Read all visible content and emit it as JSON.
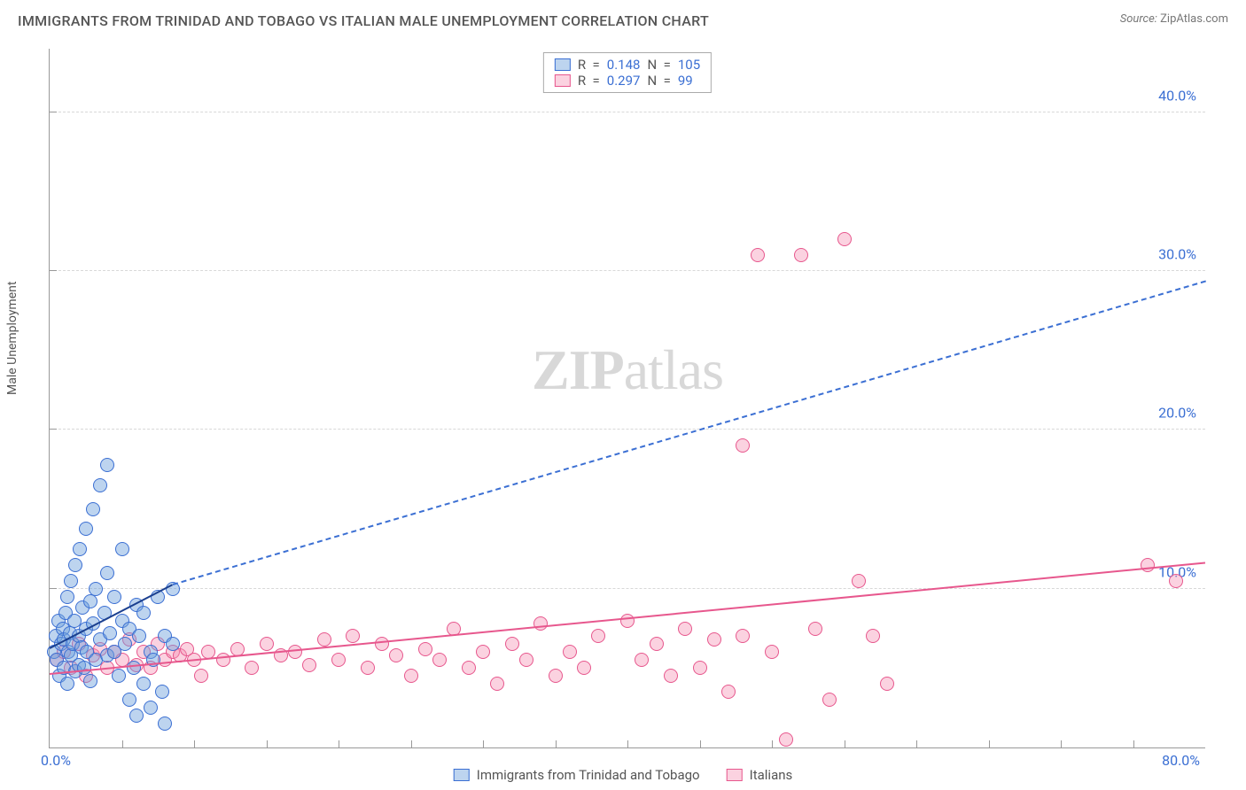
{
  "title": "IMMIGRANTS FROM TRINIDAD AND TOBAGO VS ITALIAN MALE UNEMPLOYMENT CORRELATION CHART",
  "source_label": "Source:",
  "source_value": "ZipAtlas.com",
  "watermark_a": "ZIP",
  "watermark_b": "atlas",
  "chart": {
    "type": "scatter",
    "background_color": "#ffffff",
    "grid_color": "#d8d8d8",
    "axis_color": "#999999",
    "xlim": [
      0,
      80
    ],
    "ylim": [
      0,
      44
    ],
    "x_min_label": "0.0%",
    "x_max_label": "80.0%",
    "y_tick_labels": [
      "10.0%",
      "20.0%",
      "30.0%",
      "40.0%"
    ],
    "y_tick_values": [
      10,
      20,
      30,
      40
    ],
    "x_minor_ticks": [
      5,
      10,
      15,
      20,
      25,
      30,
      35,
      40,
      45,
      50,
      55,
      60,
      65,
      70,
      75
    ],
    "y_axis_title": "Male Unemployment",
    "marker_radius": 8,
    "colors": {
      "blue_fill": "rgba(108,160,220,0.45)",
      "blue_stroke": "#3b6fd3",
      "pink_fill": "rgba(244,143,177,0.40)",
      "pink_stroke": "#e7578d",
      "trend_blue": "#1a3f8f",
      "text_value": "#3b6fd3"
    },
    "stats": {
      "blue": {
        "R_label": "R  =",
        "R": "0.148",
        "N_label": "N  =",
        "N": "105"
      },
      "pink": {
        "R_label": "R  =",
        "R": "0.297",
        "N_label": "N  =",
        "N": "99"
      }
    },
    "legend": {
      "blue": "Immigrants from Trinidad and Tobago",
      "pink": "Italians"
    },
    "trend_lines": {
      "blue_solid": {
        "x1": 0,
        "y1": 6.2,
        "x2": 8.5,
        "y2": 10.2
      },
      "blue_dash": {
        "x1": 8.5,
        "y1": 10.2,
        "x2": 80,
        "y2": 29.3
      },
      "pink_solid": {
        "x1": 0,
        "y1": 4.6,
        "x2": 80,
        "y2": 11.6
      }
    },
    "series": {
      "blue": [
        [
          0.3,
          6.0
        ],
        [
          0.4,
          7.0
        ],
        [
          0.5,
          5.5
        ],
        [
          0.6,
          8.0
        ],
        [
          0.7,
          4.5
        ],
        [
          0.8,
          6.5
        ],
        [
          0.9,
          7.5
        ],
        [
          1.0,
          5.0
        ],
        [
          1.0,
          6.8
        ],
        [
          1.1,
          8.5
        ],
        [
          1.2,
          4.0
        ],
        [
          1.2,
          9.5
        ],
        [
          1.3,
          6.0
        ],
        [
          1.4,
          7.2
        ],
        [
          1.5,
          5.8
        ],
        [
          1.5,
          10.5
        ],
        [
          1.6,
          6.5
        ],
        [
          1.7,
          8.0
        ],
        [
          1.8,
          4.8
        ],
        [
          1.8,
          11.5
        ],
        [
          2.0,
          7.0
        ],
        [
          2.0,
          5.2
        ],
        [
          2.1,
          12.5
        ],
        [
          2.2,
          6.3
        ],
        [
          2.3,
          8.8
        ],
        [
          2.4,
          5.0
        ],
        [
          2.5,
          13.8
        ],
        [
          2.5,
          7.5
        ],
        [
          2.6,
          6.0
        ],
        [
          2.8,
          9.2
        ],
        [
          2.8,
          4.2
        ],
        [
          3.0,
          15.0
        ],
        [
          3.0,
          7.8
        ],
        [
          3.2,
          5.5
        ],
        [
          3.2,
          10.0
        ],
        [
          3.5,
          6.8
        ],
        [
          3.5,
          16.5
        ],
        [
          3.8,
          8.5
        ],
        [
          4.0,
          5.8
        ],
        [
          4.0,
          11.0
        ],
        [
          4.0,
          17.8
        ],
        [
          4.2,
          7.2
        ],
        [
          4.5,
          6.0
        ],
        [
          4.5,
          9.5
        ],
        [
          4.8,
          4.5
        ],
        [
          5.0,
          8.0
        ],
        [
          5.0,
          12.5
        ],
        [
          5.2,
          6.5
        ],
        [
          5.5,
          7.5
        ],
        [
          5.5,
          3.0
        ],
        [
          5.8,
          5.0
        ],
        [
          6.0,
          9.0
        ],
        [
          6.0,
          2.0
        ],
        [
          6.2,
          7.0
        ],
        [
          6.5,
          4.0
        ],
        [
          6.5,
          8.5
        ],
        [
          7.0,
          6.0
        ],
        [
          7.0,
          2.5
        ],
        [
          7.2,
          5.5
        ],
        [
          7.5,
          9.5
        ],
        [
          7.8,
          3.5
        ],
        [
          8.0,
          7.0
        ],
        [
          8.0,
          1.5
        ],
        [
          8.5,
          6.5
        ],
        [
          8.5,
          10.0
        ]
      ],
      "pink": [
        [
          0.5,
          5.5
        ],
        [
          1.0,
          6.0
        ],
        [
          1.5,
          5.0
        ],
        [
          2.0,
          6.5
        ],
        [
          2.5,
          4.5
        ],
        [
          3.0,
          5.8
        ],
        [
          3.5,
          6.2
        ],
        [
          4.0,
          5.0
        ],
        [
          4.5,
          6.0
        ],
        [
          5.0,
          5.5
        ],
        [
          5.5,
          6.8
        ],
        [
          6.0,
          5.2
        ],
        [
          6.5,
          6.0
        ],
        [
          7.0,
          5.0
        ],
        [
          7.5,
          6.5
        ],
        [
          8.0,
          5.5
        ],
        [
          8.5,
          6.0
        ],
        [
          9.0,
          5.8
        ],
        [
          9.5,
          6.2
        ],
        [
          10.0,
          5.5
        ],
        [
          10.5,
          4.5
        ],
        [
          11.0,
          6.0
        ],
        [
          12.0,
          5.5
        ],
        [
          13.0,
          6.2
        ],
        [
          14.0,
          5.0
        ],
        [
          15.0,
          6.5
        ],
        [
          16.0,
          5.8
        ],
        [
          17.0,
          6.0
        ],
        [
          18.0,
          5.2
        ],
        [
          19.0,
          6.8
        ],
        [
          20.0,
          5.5
        ],
        [
          21.0,
          7.0
        ],
        [
          22.0,
          5.0
        ],
        [
          23.0,
          6.5
        ],
        [
          24.0,
          5.8
        ],
        [
          25.0,
          4.5
        ],
        [
          26.0,
          6.2
        ],
        [
          27.0,
          5.5
        ],
        [
          28.0,
          7.5
        ],
        [
          29.0,
          5.0
        ],
        [
          30.0,
          6.0
        ],
        [
          31.0,
          4.0
        ],
        [
          32.0,
          6.5
        ],
        [
          33.0,
          5.5
        ],
        [
          34.0,
          7.8
        ],
        [
          35.0,
          4.5
        ],
        [
          36.0,
          6.0
        ],
        [
          37.0,
          5.0
        ],
        [
          38.0,
          7.0
        ],
        [
          40.0,
          8.0
        ],
        [
          41.0,
          5.5
        ],
        [
          42.0,
          6.5
        ],
        [
          43.0,
          4.5
        ],
        [
          44.0,
          7.5
        ],
        [
          45.0,
          5.0
        ],
        [
          46.0,
          6.8
        ],
        [
          47.0,
          3.5
        ],
        [
          48.0,
          7.0
        ],
        [
          49.0,
          31.0
        ],
        [
          50.0,
          6.0
        ],
        [
          51.0,
          0.5
        ],
        [
          52.0,
          31.0
        ],
        [
          53.0,
          7.5
        ],
        [
          54.0,
          3.0
        ],
        [
          55.0,
          32.0
        ],
        [
          48.0,
          19.0
        ],
        [
          56.0,
          10.5
        ],
        [
          57.0,
          7.0
        ],
        [
          58.0,
          4.0
        ],
        [
          76.0,
          11.5
        ],
        [
          78.0,
          10.5
        ]
      ]
    }
  }
}
